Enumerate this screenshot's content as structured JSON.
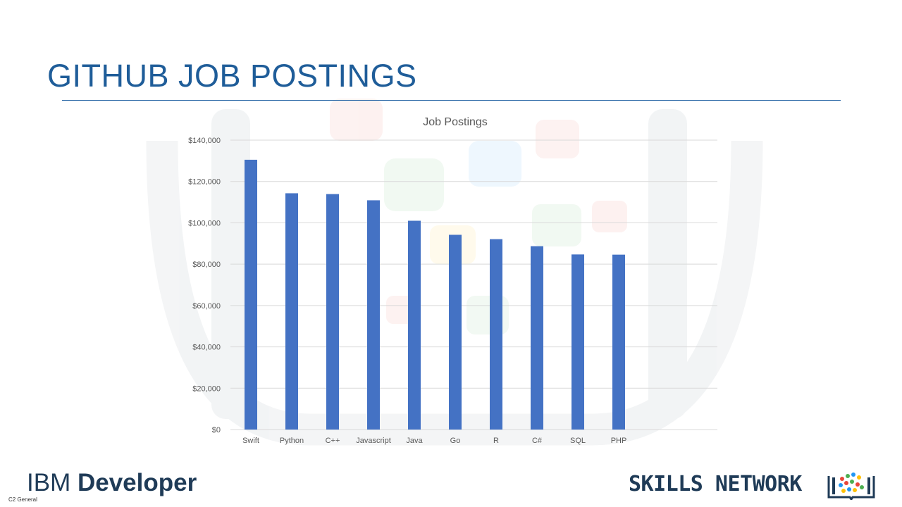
{
  "slide": {
    "title": "GITHUB JOB POSTINGS",
    "classification": "C2 General"
  },
  "logos": {
    "ibm_light": "IBM",
    "ibm_bold": "Developer",
    "skills_network": "SKILLS NETWORK",
    "brand_color": "#1f3b57"
  },
  "colors": {
    "bar": "#4472c4",
    "title": "#1f5d99",
    "axis_text": "#595959",
    "grid": "#d9d9d9"
  },
  "chart_data": {
    "type": "bar",
    "title": "Job Postings",
    "categories": [
      "Swift",
      "Python",
      "C++",
      "Javascript",
      "Java",
      "Go",
      "R",
      "C#",
      "SQL",
      "PHP"
    ],
    "series": [
      {
        "values": [
          130500,
          114300,
          113900,
          110900,
          101000,
          94200,
          92100,
          88700,
          84700,
          84600
        ]
      }
    ],
    "ylim": [
      0,
      140000
    ],
    "y_ticks": [
      "$0",
      "$20,000",
      "$40,000",
      "$60,000",
      "$80,000",
      "$100,000",
      "$120,000",
      "$140,000"
    ],
    "xlabel": "",
    "ylabel": "",
    "grid": true,
    "legend": "none"
  }
}
